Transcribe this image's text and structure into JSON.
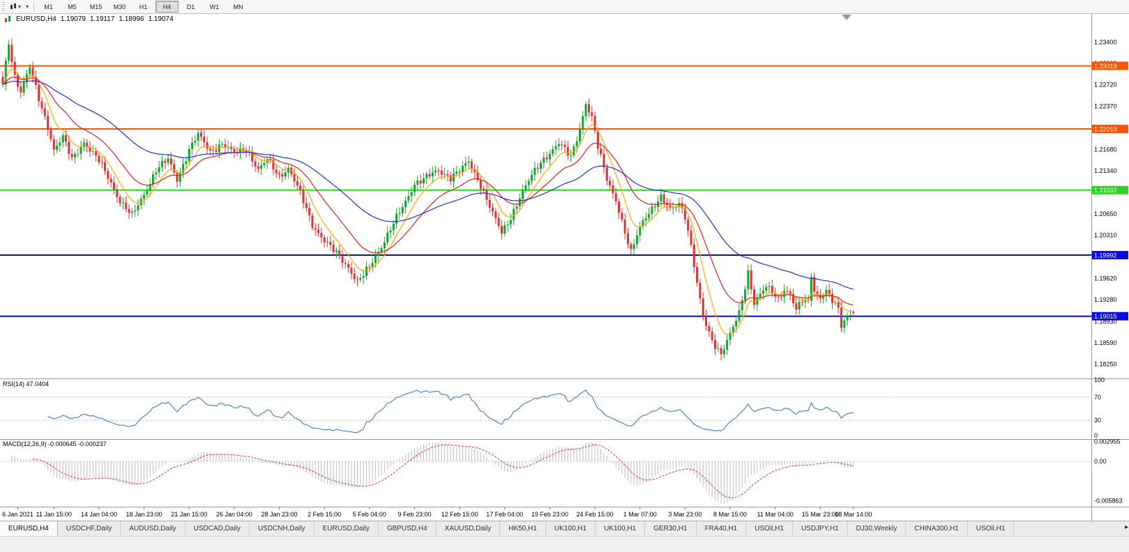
{
  "toolbar": {
    "timeframes": [
      "M1",
      "M5",
      "M15",
      "M30",
      "H1",
      "H4",
      "D1",
      "W1",
      "MN"
    ],
    "active_timeframe": "H4"
  },
  "quote": {
    "symbol": "EURUSD,H4",
    "open": "1.19079",
    "high": "1.19117",
    "low": "1.18996",
    "close": "1.19074"
  },
  "price_axis": {
    "labels": [
      "1.23400",
      "1.23060",
      "1.22720",
      "1.22370",
      "1.22030",
      "1.21680",
      "1.21340",
      "1.21000",
      "1.20650",
      "1.20310",
      "1.19960",
      "1.19620",
      "1.19280",
      "1.18930",
      "1.18590",
      "1.18250"
    ]
  },
  "levels": [
    {
      "price": 1.23019,
      "label": "1.23019",
      "color": "#ff5500"
    },
    {
      "price": 1.2201,
      "label": "1.22010",
      "color": "#ff5500"
    },
    {
      "price": 1.21032,
      "label": "1.21032",
      "color": "#2ed328"
    },
    {
      "price": 1.19992,
      "label": "1.19992",
      "color": "#0a0ae0"
    },
    {
      "price": 1.19015,
      "label": "1.19015",
      "color": "#0a0ae0"
    }
  ],
  "rsi": {
    "label": "RSI(14) 47.0404",
    "value": 47.0404,
    "axis": [
      "100",
      "70",
      "30",
      "0"
    ],
    "levels": [
      70,
      30
    ]
  },
  "macd": {
    "label": "MACD(12,26,9) -0.000645 -0.000237",
    "main": -0.000645,
    "signal": -0.000237,
    "axis": [
      {
        "label": "0.002955",
        "value": 0.002955
      },
      {
        "label": "0.00",
        "value": 0
      },
      {
        "label": "-0.005863",
        "value": -0.005863
      }
    ]
  },
  "time_axis": [
    {
      "label": "6 Jan 2021",
      "bar": 5
    },
    {
      "label": "11 Jan 15:00",
      "bar": 17
    },
    {
      "label": "14 Jan 04:00",
      "bar": 32
    },
    {
      "label": "18 Jan 23:00",
      "bar": 47
    },
    {
      "label": "21 Jan 15:00",
      "bar": 62
    },
    {
      "label": "26 Jan 04:00",
      "bar": 77
    },
    {
      "label": "28 Jan 23:00",
      "bar": 92
    },
    {
      "label": "2 Feb 15:00",
      "bar": 107
    },
    {
      "label": "5 Feb 04:00",
      "bar": 122
    },
    {
      "label": "9 Feb 23:00",
      "bar": 137
    },
    {
      "label": "12 Feb 15:00",
      "bar": 152
    },
    {
      "label": "17 Feb 04:00",
      "bar": 167
    },
    {
      "label": "19 Feb 23:00",
      "bar": 182
    },
    {
      "label": "24 Feb 15:00",
      "bar": 197
    },
    {
      "label": "1 Mar 07:00",
      "bar": 212
    },
    {
      "label": "3 Mar 23:00",
      "bar": 227
    },
    {
      "label": "8 Mar 15:00",
      "bar": 242
    },
    {
      "label": "11 Mar 04:00",
      "bar": 257
    },
    {
      "label": "15 Mar 23:00",
      "bar": 272
    },
    {
      "label": "18 Mar 14:00",
      "bar": 283
    }
  ],
  "tabs": {
    "items": [
      {
        "label": "EURUSD,H4",
        "active": true
      },
      {
        "label": "USDCHF,Daily",
        "active": false
      },
      {
        "label": "AUDUSD,Daily",
        "active": false
      },
      {
        "label": "USDCAD,Daily",
        "active": false
      },
      {
        "label": "USDCNH,Daily",
        "active": false
      },
      {
        "label": "EURUSD,Daily",
        "active": false
      },
      {
        "label": "GBPUSD,H4",
        "active": false
      },
      {
        "label": "XAUUSD,Daily",
        "active": false
      },
      {
        "label": "HK50,H1",
        "active": false
      },
      {
        "label": "UK100,H1",
        "active": false
      },
      {
        "label": "UK100,H1",
        "active": false
      },
      {
        "label": "GER30,H1",
        "active": false
      },
      {
        "label": "FRA40,H1",
        "active": false
      },
      {
        "label": "USOil,H1",
        "active": false
      },
      {
        "label": "USDJPY,H1",
        "active": false
      },
      {
        "label": "DJ30,Weekly",
        "active": false
      },
      {
        "label": "CHINA300,H1",
        "active": false
      },
      {
        "label": "USOil,H1",
        "active": false
      }
    ],
    "scroll_right_icon": "▸"
  },
  "chart_data": {
    "type": "candlestick",
    "symbol": "EURUSD",
    "timeframe": "H4",
    "title": "EURUSD,H4 1.19079 1.19117 1.18996 1.19074",
    "y_range": [
      1.1802,
      1.2386
    ],
    "bar_count": 284,
    "ma_periods": [
      8,
      21,
      55
    ],
    "colors": {
      "up": "#14a52c",
      "down": "#df3232",
      "ma_fast": "#ffaa00",
      "ma_mid": "#dd2222",
      "ma_slow": "#2233cc",
      "rsi": "#4d86c8",
      "macd_hist": "#bdbdbd",
      "macd_signal": "#df3232"
    },
    "price_waypoints": [
      [
        0,
        1.2272
      ],
      [
        2,
        1.2338
      ],
      [
        4,
        1.2285
      ],
      [
        6,
        1.2262
      ],
      [
        9,
        1.23
      ],
      [
        12,
        1.2248
      ],
      [
        15,
        1.2205
      ],
      [
        17,
        1.2168
      ],
      [
        20,
        1.2188
      ],
      [
        23,
        1.2152
      ],
      [
        27,
        1.218
      ],
      [
        30,
        1.2162
      ],
      [
        32,
        1.215
      ],
      [
        35,
        1.2124
      ],
      [
        39,
        1.2086
      ],
      [
        43,
        1.2062
      ],
      [
        47,
        1.2096
      ],
      [
        51,
        1.2136
      ],
      [
        55,
        1.2152
      ],
      [
        58,
        1.212
      ],
      [
        62,
        1.2168
      ],
      [
        65,
        1.2192
      ],
      [
        69,
        1.2165
      ],
      [
        73,
        1.2177
      ],
      [
        77,
        1.2162
      ],
      [
        81,
        1.217
      ],
      [
        85,
        1.2135
      ],
      [
        88,
        1.2152
      ],
      [
        92,
        1.2126
      ],
      [
        95,
        1.2138
      ],
      [
        99,
        1.2098
      ],
      [
        103,
        1.2048
      ],
      [
        107,
        1.2022
      ],
      [
        111,
        1.2002
      ],
      [
        115,
        1.198
      ],
      [
        118,
        1.1956
      ],
      [
        122,
        1.198
      ],
      [
        126,
        1.2014
      ],
      [
        130,
        1.205
      ],
      [
        134,
        1.2084
      ],
      [
        137,
        1.2114
      ],
      [
        141,
        1.2124
      ],
      [
        145,
        1.2134
      ],
      [
        149,
        1.2124
      ],
      [
        152,
        1.2134
      ],
      [
        155,
        1.2148
      ],
      [
        159,
        1.2112
      ],
      [
        163,
        1.2066
      ],
      [
        166,
        1.2034
      ],
      [
        169,
        1.206
      ],
      [
        172,
        1.2092
      ],
      [
        176,
        1.2126
      ],
      [
        179,
        1.2148
      ],
      [
        182,
        1.2163
      ],
      [
        185,
        1.2178
      ],
      [
        189,
        1.2156
      ],
      [
        192,
        1.2202
      ],
      [
        194,
        1.2242
      ],
      [
        196,
        1.2218
      ],
      [
        198,
        1.2172
      ],
      [
        201,
        1.2122
      ],
      [
        204,
        1.2088
      ],
      [
        207,
        1.2034
      ],
      [
        209,
        1.2002
      ],
      [
        211,
        1.2032
      ],
      [
        213,
        1.2056
      ],
      [
        216,
        1.2074
      ],
      [
        219,
        1.209
      ],
      [
        222,
        1.2072
      ],
      [
        225,
        1.2084
      ],
      [
        227,
        1.2062
      ],
      [
        229,
        1.2012
      ],
      [
        231,
        1.1952
      ],
      [
        233,
        1.1902
      ],
      [
        236,
        1.1864
      ],
      [
        239,
        1.184
      ],
      [
        241,
        1.186
      ],
      [
        243,
        1.1884
      ],
      [
        245,
        1.1908
      ],
      [
        248,
        1.1972
      ],
      [
        250,
        1.1922
      ],
      [
        252,
        1.1935
      ],
      [
        254,
        1.1948
      ],
      [
        256,
        1.1942
      ],
      [
        258,
        1.193
      ],
      [
        260,
        1.1944
      ],
      [
        262,
        1.1935
      ],
      [
        264,
        1.191
      ],
      [
        266,
        1.1928
      ],
      [
        268,
        1.1925
      ],
      [
        269,
        1.197
      ],
      [
        270,
        1.1942
      ],
      [
        272,
        1.193
      ],
      [
        274,
        1.194
      ],
      [
        276,
        1.1926
      ],
      [
        278,
        1.1914
      ],
      [
        279,
        1.1888
      ],
      [
        281,
        1.1903
      ],
      [
        283,
        1.1907
      ]
    ]
  }
}
